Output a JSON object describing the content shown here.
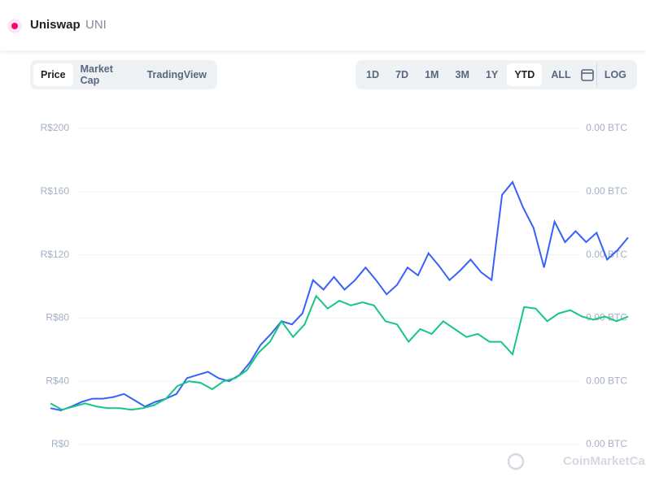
{
  "header": {
    "name": "Uniswap",
    "symbol": "UNI"
  },
  "tabs": [
    "Price",
    "Market Cap",
    "TradingView"
  ],
  "ranges": [
    "1D",
    "7D",
    "1M",
    "3M",
    "1Y",
    "YTD",
    "ALL"
  ],
  "scale_button": "LOG",
  "watermark": "CoinMarketCap",
  "chart_data": {
    "type": "line",
    "grid": true,
    "ylim": [
      0,
      200
    ],
    "yticks": [
      {
        "value": 0,
        "label": "R$0"
      },
      {
        "value": 40,
        "label": "R$40"
      },
      {
        "value": 80,
        "label": "R$80"
      },
      {
        "value": 120,
        "label": "R$120"
      },
      {
        "value": 160,
        "label": "R$160"
      },
      {
        "value": 200,
        "label": "R$200"
      }
    ],
    "y2lim": [
      0,
      0.001
    ],
    "y2ticks": [
      {
        "value": 0,
        "label": "0.00 BTC"
      },
      {
        "value": 0.0002,
        "label": "0.00 BTC"
      },
      {
        "value": 0.0004,
        "label": "0.00 BTC"
      },
      {
        "value": 0.0006,
        "label": "0.00 BTC"
      },
      {
        "value": 0.0008,
        "label": "0.00 BTC"
      },
      {
        "value": 0.001,
        "label": "0.00 BTC"
      }
    ],
    "series": [
      {
        "color": "#3861fb",
        "values": [
          23,
          21.6,
          24,
          27,
          29,
          29,
          30,
          32,
          28,
          24,
          27,
          29,
          32,
          42,
          44,
          46,
          42,
          40,
          44,
          52,
          63,
          70,
          78,
          76,
          83,
          104,
          98,
          106,
          98,
          104,
          112,
          104,
          95,
          101,
          112,
          107,
          121,
          113,
          104,
          110,
          117,
          109,
          104,
          158,
          166,
          150,
          137,
          112,
          141,
          128,
          135,
          128,
          134,
          117,
          123,
          131
        ]
      },
      {
        "color": "#16c784",
        "axis": "y2",
        "values": [
          0.00013,
          0.00011,
          0.00012,
          0.00013,
          0.00012,
          0.000115,
          0.000115,
          0.00011,
          0.000115,
          0.000125,
          0.000145,
          0.000185,
          0.0002,
          0.000195,
          0.000175,
          0.0002,
          0.00021,
          0.000235,
          0.00029,
          0.000325,
          0.00039,
          0.00034,
          0.00038,
          0.00047,
          0.00043,
          0.000455,
          0.00044,
          0.00045,
          0.00044,
          0.00039,
          0.00038,
          0.000325,
          0.000365,
          0.00035,
          0.00039,
          0.000365,
          0.00034,
          0.00035,
          0.000325,
          0.000325,
          0.000285,
          0.000435,
          0.00043,
          0.00039,
          0.000415,
          0.000425,
          0.000405,
          0.000395,
          0.000405,
          0.00039,
          0.000405
        ]
      }
    ]
  }
}
